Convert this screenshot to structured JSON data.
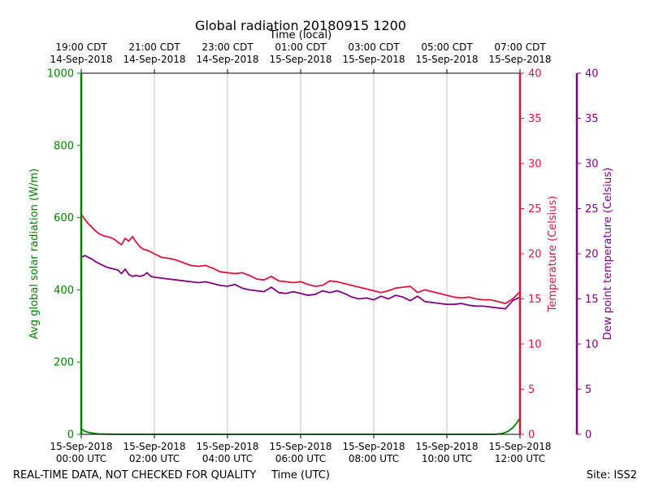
{
  "chart_data": {
    "type": "line",
    "title": "Global radiation 20180915 1200",
    "top_axis_label": "Time (local)",
    "xlabel": "Time (UTC)",
    "y_left_label": "Avg global solar radiation (W/m)",
    "y_right_label": "Temperature (Celsius)",
    "y_right2_label": "Dew point temperature (Celsius)",
    "footer_left": "REAL-TIME DATA, NOT CHECKED FOR QUALITY",
    "footer_right": "Site: ISS2",
    "x_range_hours": [
      0,
      12
    ],
    "ylim_left": [
      0,
      1000
    ],
    "ylim_right": [
      0,
      40
    ],
    "ylim_right2": [
      0,
      40
    ],
    "y_left_ticks": [
      0,
      200,
      400,
      600,
      800,
      1000
    ],
    "y_right_ticks": [
      0,
      5,
      10,
      15,
      20,
      25,
      30,
      35,
      40
    ],
    "grid": "vertical",
    "x_ticks_bottom": [
      {
        "hour": 0,
        "line1": "15-Sep-2018",
        "line2": "00:00 UTC"
      },
      {
        "hour": 2,
        "line1": "15-Sep-2018",
        "line2": "02:00 UTC"
      },
      {
        "hour": 4,
        "line1": "15-Sep-2018",
        "line2": "04:00 UTC"
      },
      {
        "hour": 6,
        "line1": "15-Sep-2018",
        "line2": "06:00 UTC"
      },
      {
        "hour": 8,
        "line1": "15-Sep-2018",
        "line2": "08:00 UTC"
      },
      {
        "hour": 10,
        "line1": "15-Sep-2018",
        "line2": "10:00 UTC"
      },
      {
        "hour": 12,
        "line1": "15-Sep-2018",
        "line2": "12:00 UTC"
      }
    ],
    "x_ticks_top": [
      {
        "hour": 0,
        "line1": "19:00 CDT",
        "line2": "14-Sep-2018"
      },
      {
        "hour": 2,
        "line1": "21:00 CDT",
        "line2": "14-Sep-2018"
      },
      {
        "hour": 4,
        "line1": "23:00 CDT",
        "line2": "14-Sep-2018"
      },
      {
        "hour": 6,
        "line1": "01:00 CDT",
        "line2": "15-Sep-2018"
      },
      {
        "hour": 8,
        "line1": "03:00 CDT",
        "line2": "15-Sep-2018"
      },
      {
        "hour": 10,
        "line1": "05:00 CDT",
        "line2": "15-Sep-2018"
      },
      {
        "hour": 12,
        "line1": "07:00 CDT",
        "line2": "15-Sep-2018"
      }
    ],
    "series": [
      {
        "name": "Avg global solar radiation",
        "axis": "left",
        "color": "#008000",
        "x": [
          0,
          0.1,
          0.25,
          0.5,
          1,
          11.3,
          11.5,
          11.6,
          11.7,
          11.8,
          11.9,
          12
        ],
        "y": [
          15,
          8,
          4,
          1,
          0,
          0,
          2,
          5,
          10,
          18,
          30,
          45
        ]
      },
      {
        "name": "Temperature",
        "axis": "right",
        "color": "#dc143c",
        "x": [
          0,
          0.1,
          0.2,
          0.3,
          0.4,
          0.5,
          0.6,
          0.7,
          0.8,
          0.9,
          1.0,
          1.1,
          1.2,
          1.3,
          1.4,
          1.45,
          1.5,
          1.6,
          1.7,
          1.8,
          1.9,
          2.0,
          2.2,
          2.4,
          2.6,
          2.8,
          3.0,
          3.2,
          3.4,
          3.6,
          3.8,
          4.0,
          4.2,
          4.4,
          4.6,
          4.8,
          5.0,
          5.2,
          5.4,
          5.6,
          5.8,
          6.0,
          6.2,
          6.4,
          6.6,
          6.8,
          7.0,
          7.2,
          7.4,
          7.6,
          7.8,
          8.0,
          8.2,
          8.4,
          8.6,
          8.8,
          9.0,
          9.2,
          9.4,
          9.6,
          9.8,
          10.0,
          10.2,
          10.4,
          10.6,
          10.8,
          11.0,
          11.2,
          11.4,
          11.6,
          11.8,
          12.0
        ],
        "y": [
          24.4,
          23.8,
          23.3,
          22.9,
          22.5,
          22.2,
          22.0,
          21.9,
          21.8,
          21.6,
          21.3,
          21.0,
          21.7,
          21.4,
          21.9,
          21.6,
          21.3,
          20.8,
          20.5,
          20.4,
          20.2,
          20.0,
          19.6,
          19.5,
          19.3,
          19.0,
          18.7,
          18.6,
          18.7,
          18.4,
          18.0,
          17.9,
          17.8,
          17.9,
          17.6,
          17.2,
          17.1,
          17.5,
          17.0,
          16.9,
          16.8,
          16.9,
          16.6,
          16.4,
          16.5,
          17.0,
          16.9,
          16.7,
          16.5,
          16.3,
          16.1,
          15.9,
          15.7,
          15.9,
          16.2,
          16.3,
          16.4,
          15.7,
          16.0,
          15.8,
          15.6,
          15.4,
          15.2,
          15.1,
          15.2,
          15.0,
          14.9,
          14.9,
          14.7,
          14.5,
          15.0,
          15.8
        ]
      },
      {
        "name": "Dew point temperature",
        "axis": "right2",
        "color": "#800080",
        "x": [
          0,
          0.1,
          0.2,
          0.3,
          0.4,
          0.5,
          0.6,
          0.7,
          0.8,
          0.9,
          1.0,
          1.1,
          1.2,
          1.3,
          1.4,
          1.5,
          1.6,
          1.7,
          1.8,
          1.9,
          2.0,
          2.2,
          2.4,
          2.6,
          2.8,
          3.0,
          3.2,
          3.4,
          3.6,
          3.8,
          4.0,
          4.2,
          4.4,
          4.6,
          4.8,
          5.0,
          5.2,
          5.4,
          5.6,
          5.8,
          6.0,
          6.2,
          6.4,
          6.6,
          6.8,
          7.0,
          7.2,
          7.4,
          7.6,
          7.8,
          8.0,
          8.2,
          8.4,
          8.6,
          8.8,
          9.0,
          9.2,
          9.4,
          9.6,
          9.8,
          10.0,
          10.2,
          10.4,
          10.6,
          10.8,
          11.0,
          11.2,
          11.4,
          11.6,
          11.8,
          12.0
        ],
        "y": [
          19.6,
          19.8,
          19.6,
          19.4,
          19.1,
          18.9,
          18.7,
          18.5,
          18.4,
          18.3,
          18.2,
          17.8,
          18.3,
          17.7,
          17.5,
          17.6,
          17.5,
          17.6,
          17.9,
          17.5,
          17.4,
          17.3,
          17.2,
          17.1,
          17.0,
          16.9,
          16.8,
          16.9,
          16.7,
          16.5,
          16.4,
          16.6,
          16.2,
          16.0,
          15.9,
          15.8,
          16.3,
          15.7,
          15.6,
          15.8,
          15.6,
          15.4,
          15.5,
          15.9,
          15.7,
          15.9,
          15.6,
          15.2,
          15.0,
          15.1,
          14.9,
          15.3,
          15.0,
          15.4,
          15.2,
          14.8,
          15.3,
          14.7,
          14.6,
          14.5,
          14.4,
          14.4,
          14.5,
          14.3,
          14.2,
          14.2,
          14.1,
          14.0,
          13.9,
          14.8,
          15.2
        ]
      }
    ]
  }
}
